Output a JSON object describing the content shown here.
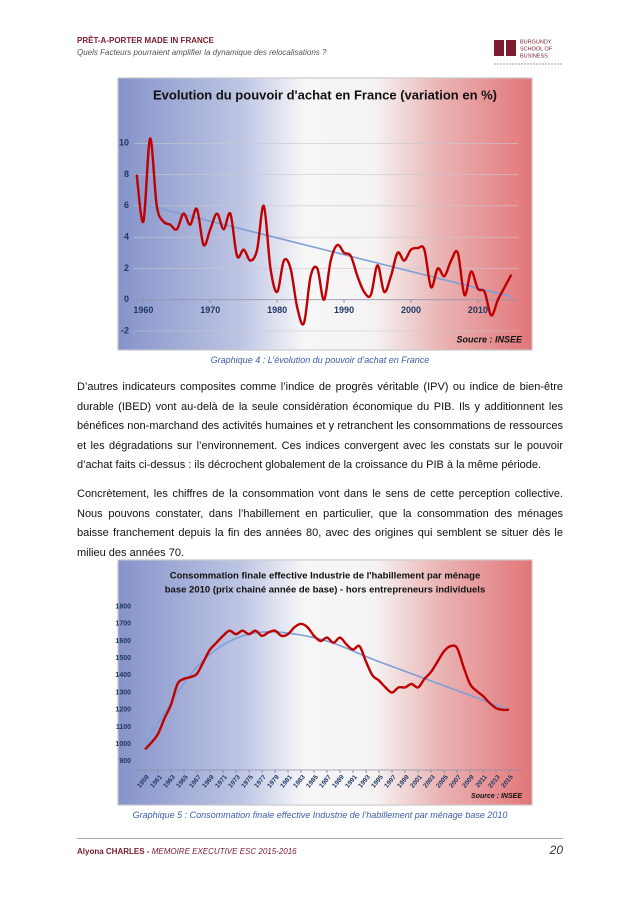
{
  "header": {
    "title": "PRÊT-A-PORTER MADE IN FRANCE",
    "subtitle": "Quels Facteurs pourraient amplifier la dynamique des relocalisations ?",
    "logo": [
      "BURGUNDY",
      "SCHOOL OF",
      "BUSINESS"
    ]
  },
  "chart_data": [
    {
      "type": "line",
      "title": [
        "Evolution du pouvoir d'achat en France (variation en %)"
      ],
      "source": "Soucre : INSEE",
      "caption": "Graphique 4 : L’évolution du pouvoir d’achat en France",
      "x": [
        1959,
        1960,
        1961,
        1962,
        1963,
        1964,
        1965,
        1966,
        1967,
        1968,
        1969,
        1970,
        1971,
        1972,
        1973,
        1974,
        1975,
        1976,
        1977,
        1978,
        1979,
        1980,
        1981,
        1982,
        1983,
        1984,
        1985,
        1986,
        1987,
        1988,
        1989,
        1990,
        1991,
        1992,
        1993,
        1994,
        1995,
        1996,
        1997,
        1998,
        1999,
        2000,
        2001,
        2002,
        2003,
        2004,
        2005,
        2006,
        2007,
        2008,
        2009,
        2010,
        2011,
        2012,
        2013,
        2014,
        2015
      ],
      "series": [
        {
          "color": "#c00000",
          "values": [
            8,
            5,
            10.3,
            6,
            5,
            4.8,
            4.5,
            5.5,
            4.8,
            5.8,
            3.5,
            4.5,
            5.5,
            4.5,
            5.5,
            2.8,
            3.2,
            2.5,
            3.2,
            6,
            2,
            0.5,
            2.5,
            2,
            -0.5,
            -1.5,
            1.5,
            2,
            0,
            2.5,
            3.5,
            3,
            2.8,
            1.5,
            0.5,
            0.3,
            2.2,
            0.5,
            1.5,
            3,
            2.5,
            3.2,
            3.3,
            3.2,
            0.8,
            2,
            1.5,
            2.5,
            3,
            0.3,
            1.8,
            0.7,
            0.5,
            -1,
            0,
            0.8,
            1.6
          ]
        }
      ],
      "trend": {
        "color": "#7f9fd6",
        "x": [
          1959,
          2015
        ],
        "values": [
          6.2,
          0.2
        ]
      },
      "xlim": [
        1958,
        2016
      ],
      "xticks": [
        1960,
        1970,
        1980,
        1990,
        2000,
        2010
      ],
      "ylim": [
        -2,
        12
      ],
      "yticks": [
        -2,
        0,
        2,
        4,
        6,
        8,
        10
      ],
      "grid": true
    },
    {
      "type": "line",
      "title": [
        "Consommation finale effective Industrie de l'habillement par ménage",
        "base 2010 (prix chainé année de base) - hors entrepreneurs individuels"
      ],
      "source": "Source : INSEE",
      "caption": "Graphique 5 : Consommation finale effective Industrie de l’habillement  par ménage base 2010",
      "x": [
        1959,
        1960,
        1961,
        1962,
        1963,
        1964,
        1965,
        1966,
        1967,
        1968,
        1969,
        1970,
        1971,
        1972,
        1973,
        1974,
        1975,
        1976,
        1977,
        1978,
        1979,
        1980,
        1981,
        1982,
        1983,
        1984,
        1985,
        1986,
        1987,
        1988,
        1989,
        1990,
        1991,
        1992,
        1993,
        1994,
        1995,
        1996,
        1997,
        1998,
        1999,
        2000,
        2001,
        2002,
        2003,
        2004,
        2005,
        2006,
        2007,
        2008,
        2009,
        2010,
        2011,
        2012,
        2013,
        2014,
        2015
      ],
      "series": [
        {
          "color": "#c00000",
          "values": [
            970,
            1010,
            1060,
            1150,
            1230,
            1350,
            1380,
            1390,
            1410,
            1480,
            1550,
            1590,
            1630,
            1660,
            1640,
            1660,
            1640,
            1660,
            1630,
            1650,
            1660,
            1630,
            1640,
            1680,
            1700,
            1680,
            1630,
            1600,
            1620,
            1590,
            1620,
            1580,
            1550,
            1570,
            1480,
            1400,
            1370,
            1330,
            1300,
            1330,
            1330,
            1350,
            1330,
            1380,
            1420,
            1480,
            1540,
            1570,
            1560,
            1450,
            1350,
            1310,
            1280,
            1240,
            1210,
            1200,
            1200
          ]
        }
      ],
      "trend": {
        "color": "#7f9fd6",
        "x": [
          1959,
          1967,
          1975,
          1985,
          1995,
          2005,
          2015
        ],
        "values": [
          1000,
          1450,
          1640,
          1620,
          1480,
          1340,
          1200
        ]
      },
      "xlim": [
        1957,
        2017
      ],
      "xticks": [
        1959,
        1961,
        1963,
        1965,
        1967,
        1969,
        1971,
        1973,
        1975,
        1977,
        1979,
        1981,
        1983,
        1985,
        1987,
        1989,
        1991,
        1993,
        1995,
        1997,
        1999,
        2001,
        2003,
        2005,
        2007,
        2009,
        2011,
        2013,
        2015
      ],
      "ylim": [
        850,
        1850
      ],
      "yticks": [
        900,
        1000,
        1100,
        1200,
        1300,
        1400,
        1500,
        1600,
        1700,
        1800
      ],
      "grid": false
    }
  ],
  "paragraphs": [
    "D’autres indicateurs composites comme l’indice de progrès véritable (IPV) ou indice de bien-être durable (IBED) vont au-delà de la seule considération économique du PIB. Ils y additionnent les bénéfices non-marchand des activités humaines et y retranchent les consommations de ressources et les dégradations sur l’environnement. Ces indices convergent avec les constats sur le pouvoir d’achat faits ci-dessus : ils décrochent globalement de la croissance du PIB à la même période.",
    "Concrètement, les chiffres de la consommation vont dans le sens de cette perception collective. Nous pouvons constater, dans l’habillement en particulier, que la consommation des ménages baisse franchement depuis la fin des années 80, avec des origines qui semblent se situer dès le milieu des années 70."
  ],
  "footer": {
    "author": "Alyona CHARLES -",
    "doc": "MEMOIRE EXECUTIVE ESC 2015-2016",
    "page": 20
  }
}
